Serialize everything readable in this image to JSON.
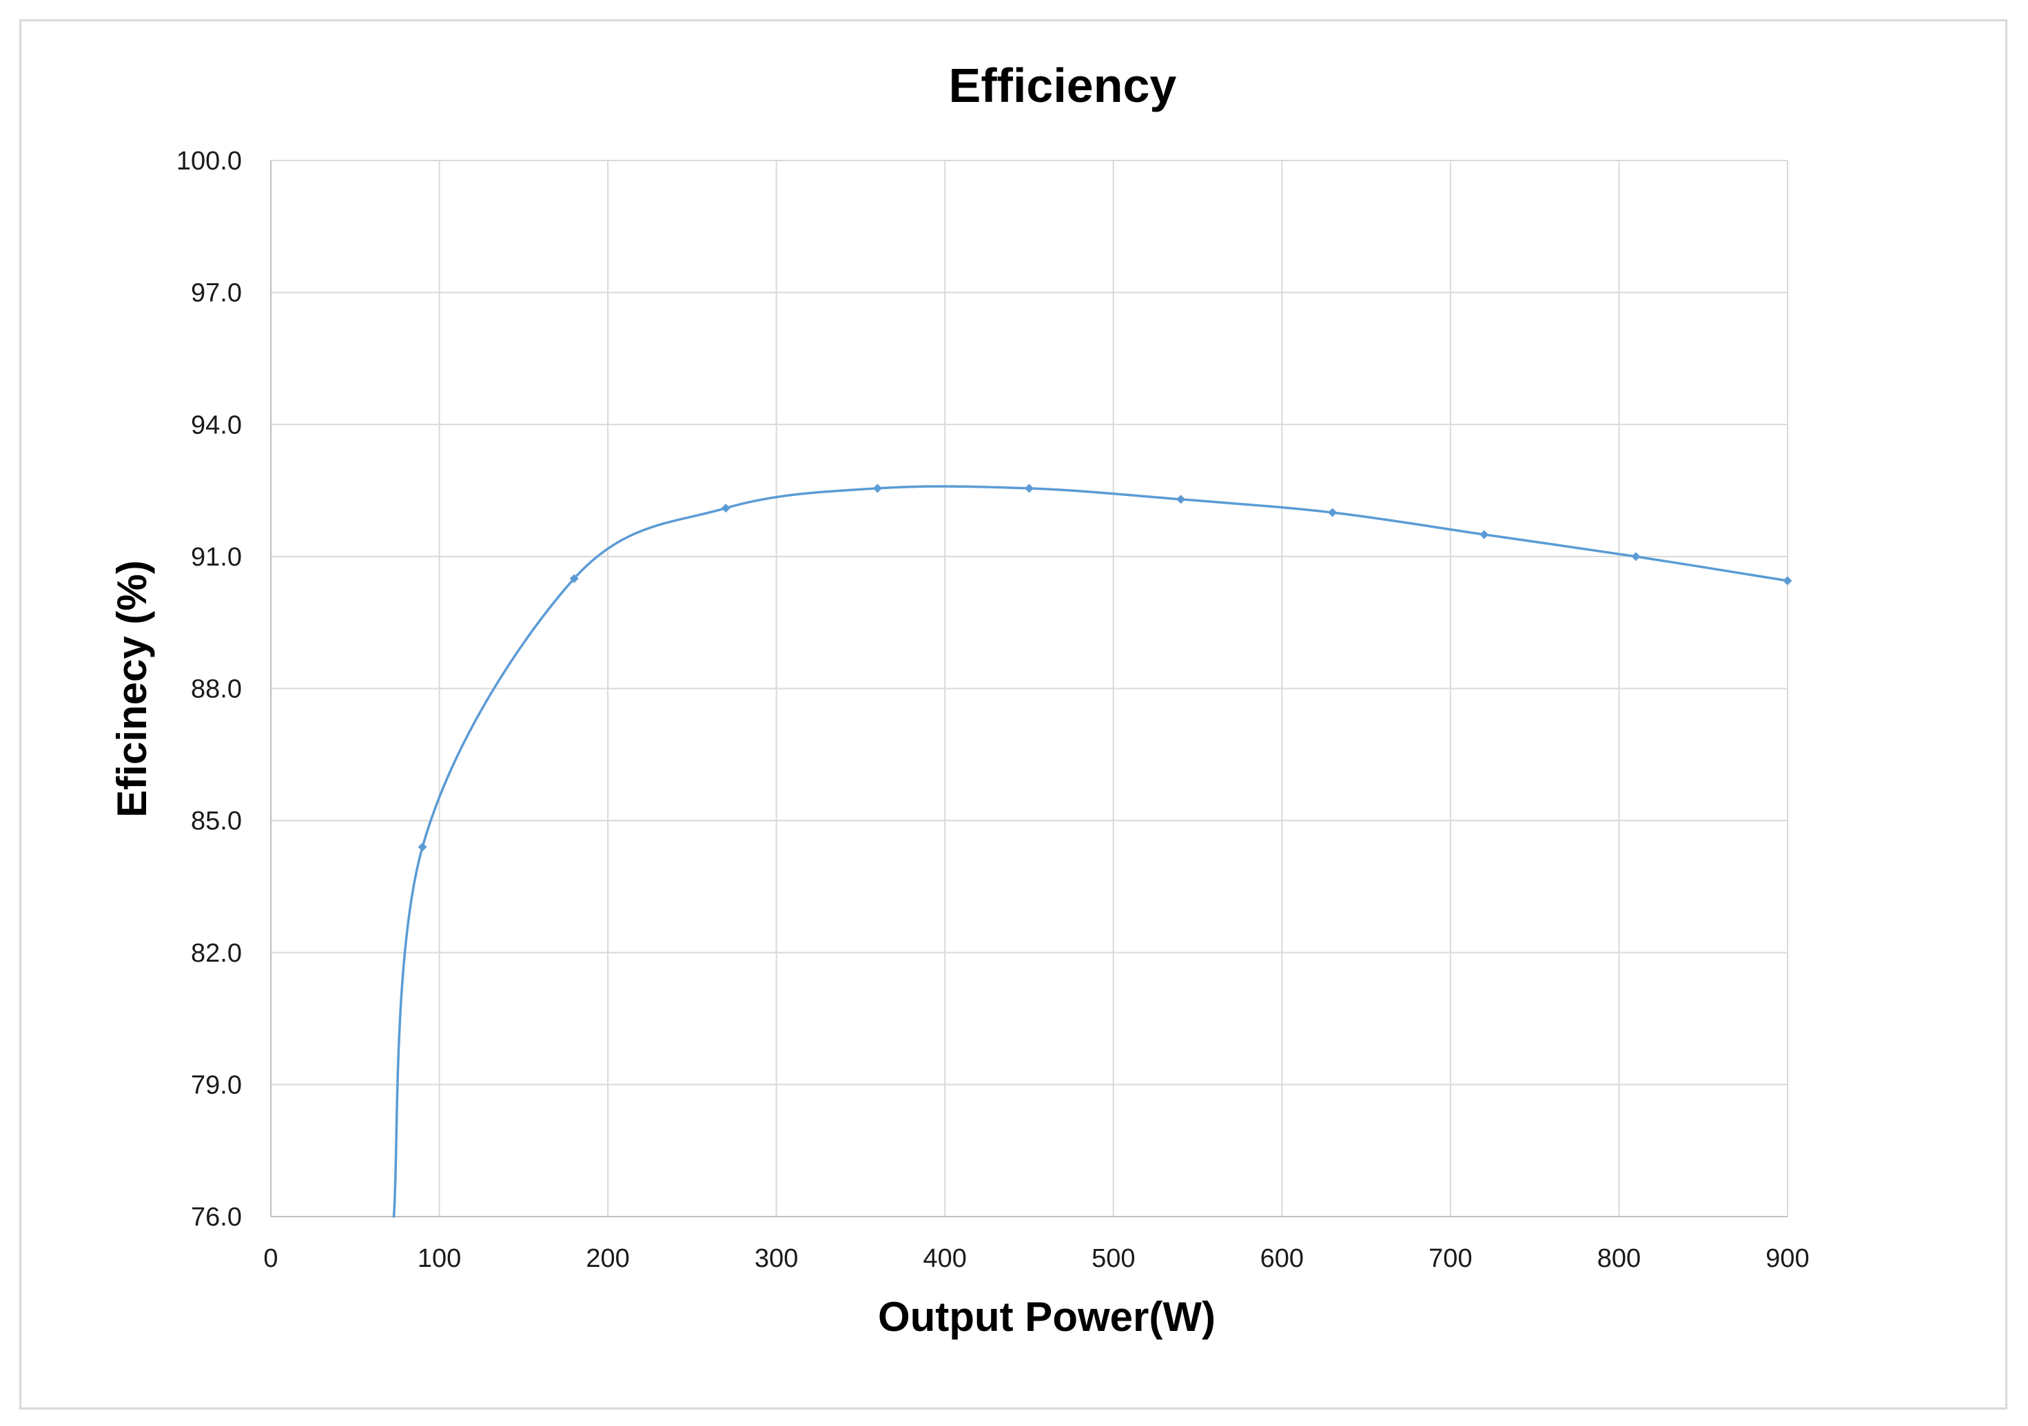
{
  "chart_data": {
    "type": "line",
    "title": "Efficiency",
    "xlabel": "Output Power(W)",
    "ylabel": "Eficinecy (%)",
    "xlim": [
      0,
      900
    ],
    "ylim": [
      76.0,
      100.0
    ],
    "x_ticks": [
      "0",
      "100",
      "200",
      "300",
      "400",
      "500",
      "600",
      "700",
      "800",
      "900"
    ],
    "y_ticks": [
      "76.0",
      "79.0",
      "82.0",
      "85.0",
      "88.0",
      "91.0",
      "94.0",
      "97.0",
      "100.0"
    ],
    "grid": true,
    "legend": "none",
    "series": [
      {
        "name": "Efficiency",
        "color": "#5b9bd5",
        "x": [
          90,
          180,
          270,
          360,
          450,
          540,
          630,
          720,
          810,
          900
        ],
        "y": [
          84.4,
          90.5,
          92.1,
          92.55,
          92.55,
          92.3,
          92.0,
          91.5,
          91.0,
          90.45
        ]
      }
    ],
    "line_extension_below_axis": {
      "x": 73,
      "y": 76.0
    }
  }
}
